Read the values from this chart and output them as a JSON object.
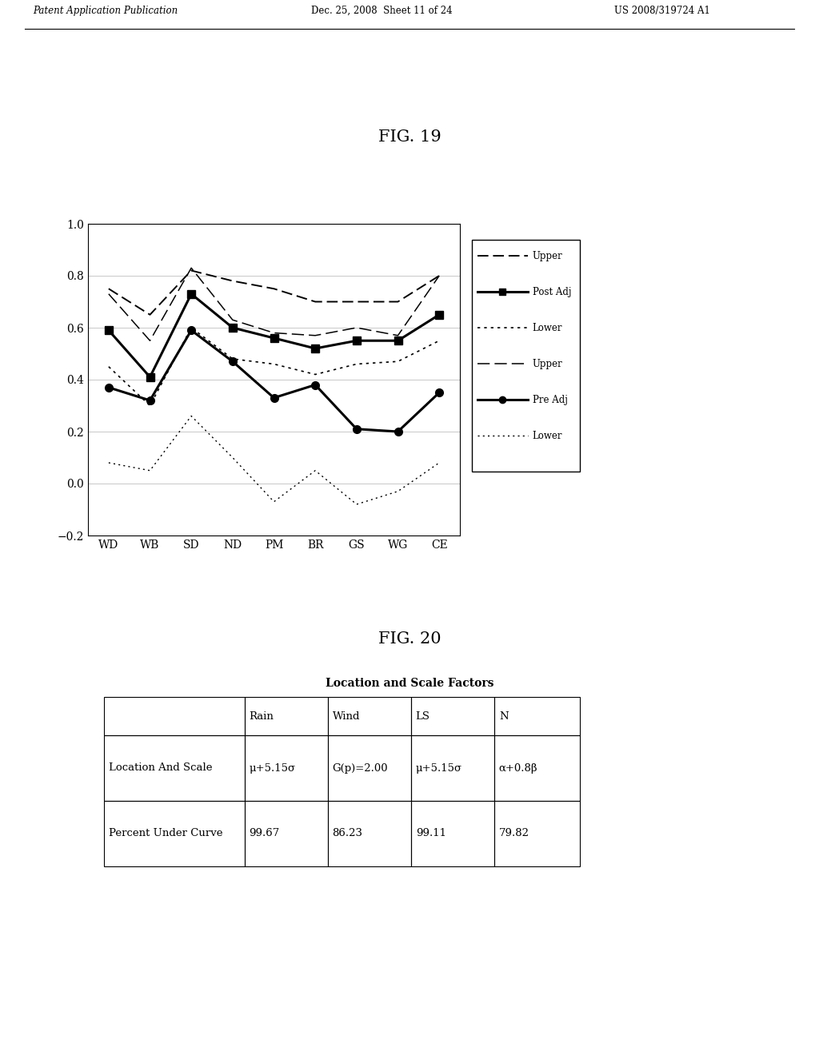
{
  "fig19_title": "FIG. 19",
  "fig20_title": "FIG. 20",
  "categories": [
    "WD",
    "WB",
    "SD",
    "ND",
    "PM",
    "BR",
    "GS",
    "WG",
    "CE"
  ],
  "post_adj_upper": [
    0.75,
    0.65,
    0.82,
    0.78,
    0.75,
    0.7,
    0.7,
    0.7,
    0.8
  ],
  "post_adj_line": [
    0.59,
    0.41,
    0.73,
    0.6,
    0.56,
    0.52,
    0.55,
    0.55,
    0.65
  ],
  "post_adj_lower": [
    0.45,
    0.3,
    0.6,
    0.48,
    0.46,
    0.42,
    0.46,
    0.47,
    0.55
  ],
  "pre_adj_upper": [
    0.73,
    0.55,
    0.83,
    0.63,
    0.58,
    0.57,
    0.6,
    0.57,
    0.8
  ],
  "pre_adj_line": [
    0.37,
    0.32,
    0.59,
    0.47,
    0.33,
    0.38,
    0.21,
    0.2,
    0.35
  ],
  "pre_adj_lower": [
    0.08,
    0.05,
    0.26,
    0.1,
    -0.07,
    0.05,
    -0.08,
    -0.03,
    0.08
  ],
  "ylim": [
    -0.2,
    1.0
  ],
  "yticks": [
    -0.2,
    0,
    0.2,
    0.4,
    0.6,
    0.8,
    1.0
  ],
  "table_title": "Location and Scale Factors",
  "table_headers": [
    "",
    "Rain",
    "Wind",
    "LS",
    "N"
  ],
  "table_row1": [
    "Location And Scale",
    "μ+5.15σ",
    "G(p)=2.00",
    "μ+5.15σ",
    "α+0.8β"
  ],
  "table_row2": [
    "Percent Under Curve",
    "99.67",
    "86.23",
    "99.11",
    "79.82"
  ],
  "header_text_top": "Patent Application Publication",
  "header_date": "Dec. 25, 2008  Sheet 11 of 24",
  "header_patent": "US 2008/319724 A1"
}
